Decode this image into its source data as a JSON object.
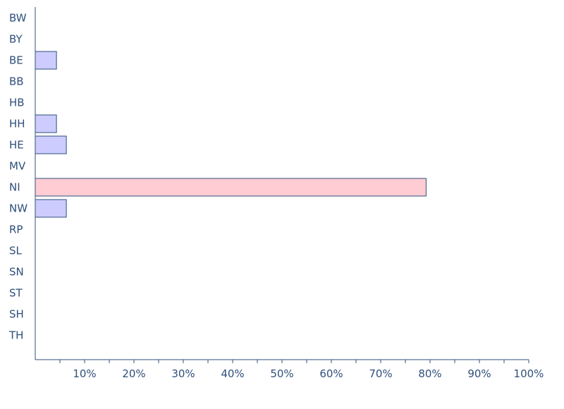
{
  "chart_data": {
    "type": "bar",
    "orientation": "horizontal",
    "categories": [
      "BW",
      "BY",
      "BE",
      "BB",
      "HB",
      "HH",
      "HE",
      "MV",
      "NI",
      "NW",
      "RP",
      "SL",
      "SN",
      "ST",
      "SH",
      "TH"
    ],
    "values": [
      0,
      0,
      4.3,
      0,
      0,
      4.3,
      6.3,
      0,
      79.2,
      6.3,
      0,
      0,
      0,
      0,
      0,
      0
    ],
    "highlight_category": "NI",
    "xlim": [
      0,
      100
    ],
    "x_ticks": [
      10,
      20,
      30,
      40,
      50,
      60,
      70,
      80,
      90,
      100
    ],
    "x_tick_labels": [
      "10%",
      "20%",
      "30%",
      "40%",
      "50%",
      "60%",
      "70%",
      "80%",
      "90%",
      "100%"
    ],
    "title": "",
    "xlabel": "",
    "ylabel": "",
    "grid": false,
    "colors": {
      "bar_fill": "#ccccff",
      "highlight_fill": "#ffccd4",
      "bar_stroke": "#2f4f7a",
      "axis": "#2f4f7a",
      "text": "#2f4f7a"
    }
  }
}
